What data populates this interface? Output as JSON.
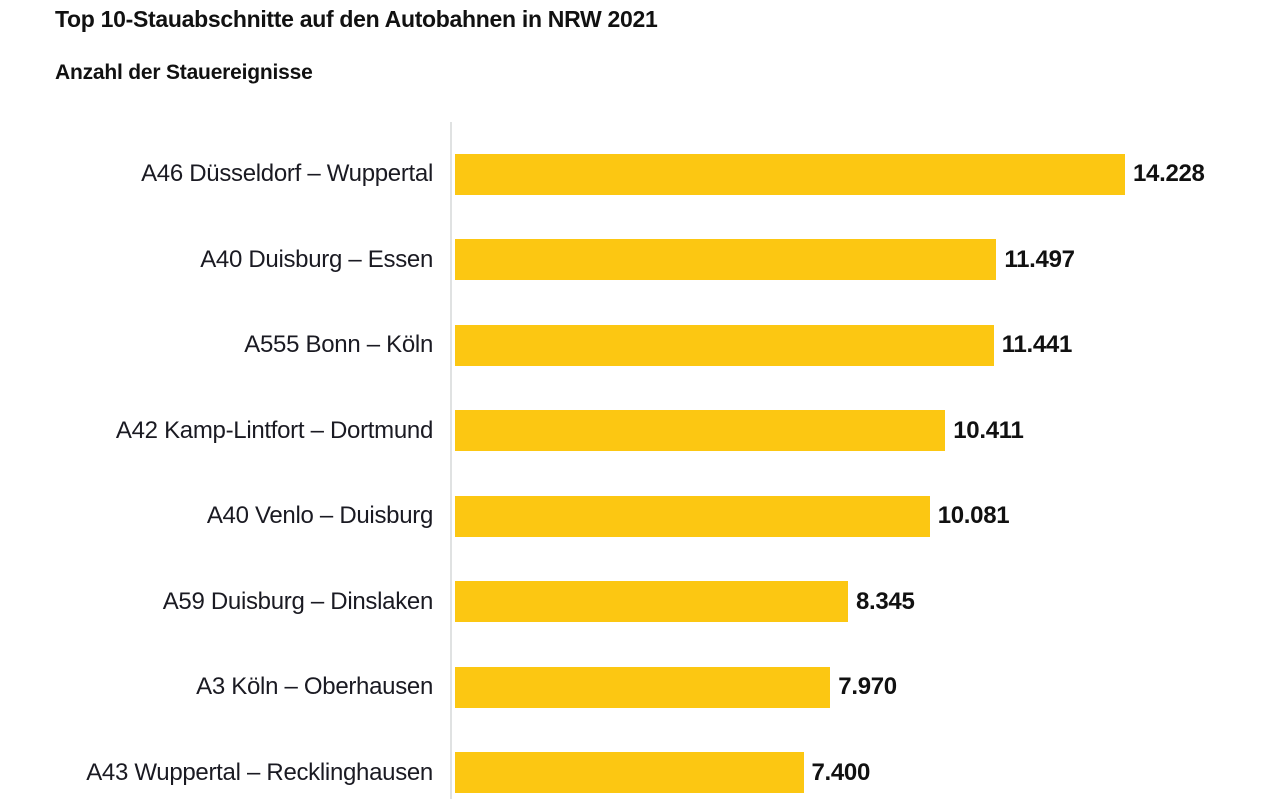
{
  "title": "Top 10-Stauabschnitte auf den Autobahnen in NRW 2021",
  "subtitle": "Anzahl der Stauereignisse",
  "chart_data": {
    "type": "bar",
    "orientation": "horizontal",
    "title": "Top 10-Stauabschnitte auf den Autobahnen in NRW 2021",
    "subtitle": "Anzahl der Stauereignisse",
    "categories": [
      "A46 Düsseldorf – Wuppertal",
      "A40 Duisburg – Essen",
      "A555 Bonn – Köln",
      "A42 Kamp-Lintfort – Dortmund",
      "A40 Venlo – Duisburg",
      "A59 Duisburg – Dinslaken",
      "A3 Köln – Oberhausen",
      "A43 Wuppertal – Recklinghausen"
    ],
    "values": [
      14228,
      11497,
      11441,
      10411,
      10081,
      8345,
      7970,
      7400
    ],
    "value_labels": [
      "14.228",
      "11.497",
      "11.441",
      "10.411",
      "10.081",
      "8.345",
      "7.970",
      "7.400"
    ],
    "xlabel": "",
    "ylabel": "",
    "xlim": [
      0,
      14228
    ],
    "grid": false,
    "legend": false,
    "bar_color": "#fcc712",
    "axis_line_color": "#e0e2e2"
  },
  "colors": {
    "background": "#ffffff",
    "bar": "#fcc712",
    "axis_line": "#e0e2e2",
    "title_text": "#111111",
    "label_text": "#1a1a22",
    "value_text": "#111111"
  }
}
